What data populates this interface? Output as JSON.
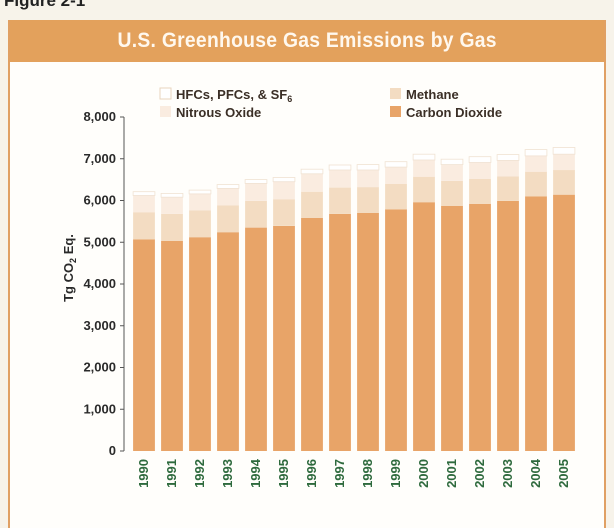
{
  "figure_label": "Figure 2-1",
  "chart_data": {
    "type": "bar",
    "title": "U.S. Greenhouse Gas Emissions by Gas",
    "ylabel": "Tg CO2 Eq.",
    "xlabel": "",
    "ylim": [
      0,
      8000
    ],
    "yticks": [
      0,
      1000,
      2000,
      3000,
      4000,
      5000,
      6000,
      7000,
      8000
    ],
    "ytick_labels": [
      "0",
      "1,000",
      "2,000",
      "3,000",
      "4,000",
      "5,000",
      "6,000",
      "7,000",
      "8,000"
    ],
    "stacked": true,
    "grid": false,
    "legend_position": "top",
    "categories": [
      "1990",
      "1991",
      "1992",
      "1993",
      "1994",
      "1995",
      "1996",
      "1997",
      "1998",
      "1999",
      "2000",
      "2001",
      "2002",
      "2003",
      "2004",
      "2005"
    ],
    "series": [
      {
        "name": "Carbon Dioxide",
        "color": "#e8a468",
        "values": [
          5070,
          5030,
          5120,
          5240,
          5350,
          5390,
          5580,
          5680,
          5700,
          5790,
          5960,
          5870,
          5920,
          5990,
          6100,
          6140
        ]
      },
      {
        "name": "Methane",
        "color": "#f3dcc2",
        "values": [
          650,
          650,
          640,
          640,
          640,
          640,
          630,
          630,
          620,
          610,
          610,
          600,
          600,
          590,
          590,
          590
        ]
      },
      {
        "name": "Nitrous Oxide",
        "color": "#faece0",
        "values": [
          400,
          400,
          400,
          410,
          420,
          420,
          430,
          420,
          410,
          400,
          400,
          390,
          390,
          380,
          380,
          380
        ]
      },
      {
        "name": "HFCs, PFCs, & SF6",
        "color": "#ffffff",
        "values": [
          90,
          90,
          90,
          90,
          90,
          100,
          110,
          120,
          130,
          130,
          140,
          130,
          140,
          140,
          150,
          160
        ]
      }
    ],
    "legend": [
      {
        "label": "HFCs, PFCs, & SF",
        "subscript": "6",
        "series": "HFCs, PFCs, & SF6"
      },
      {
        "label": "Methane",
        "series": "Methane"
      },
      {
        "label": "Nitrous Oxide",
        "series": "Nitrous Oxide"
      },
      {
        "label": "Carbon Dioxide",
        "series": "Carbon Dioxide"
      }
    ]
  }
}
